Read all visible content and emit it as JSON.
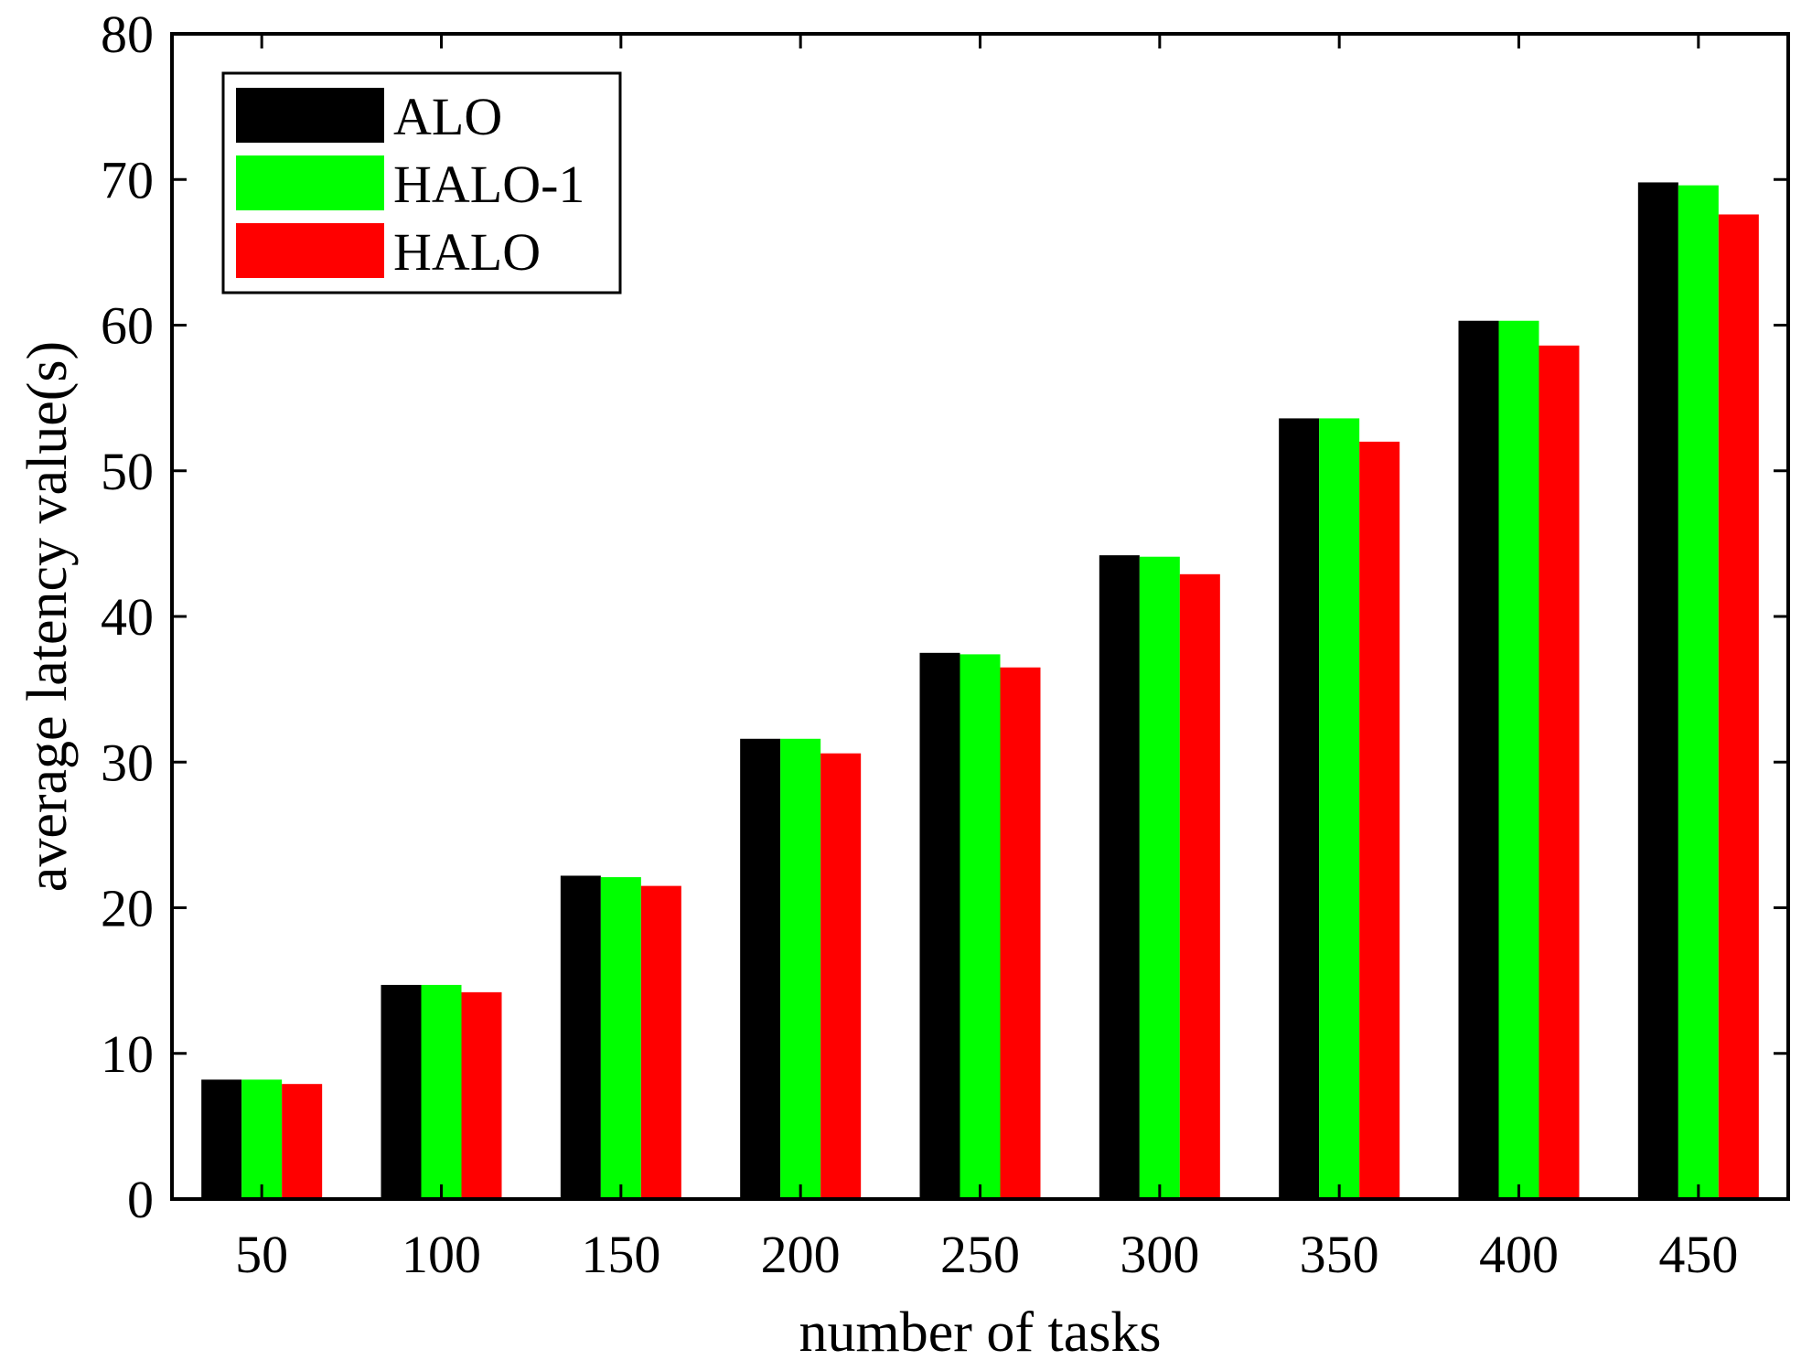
{
  "chart_data": {
    "type": "bar",
    "title": "",
    "xlabel": "number of tasks",
    "ylabel": "average latency value(s)",
    "categories": [
      "50",
      "100",
      "150",
      "200",
      "250",
      "300",
      "350",
      "400",
      "450"
    ],
    "ylim": [
      0,
      80
    ],
    "yticks": [
      "0",
      "10",
      "20",
      "30",
      "40",
      "50",
      "60",
      "70",
      "80"
    ],
    "grid": false,
    "legend_position": "top-left",
    "series": [
      {
        "name": "ALO",
        "color": "#000000",
        "values": [
          8.2,
          14.7,
          22.2,
          31.6,
          37.5,
          44.2,
          53.6,
          60.3,
          69.8
        ]
      },
      {
        "name": "HALO-1",
        "color": "#00ff00",
        "values": [
          8.2,
          14.7,
          22.1,
          31.6,
          37.4,
          44.1,
          53.6,
          60.3,
          69.6
        ]
      },
      {
        "name": "HALO",
        "color": "#ff0000",
        "values": [
          7.9,
          14.2,
          21.5,
          30.6,
          36.5,
          42.9,
          52.0,
          58.6,
          67.6
        ]
      }
    ]
  }
}
